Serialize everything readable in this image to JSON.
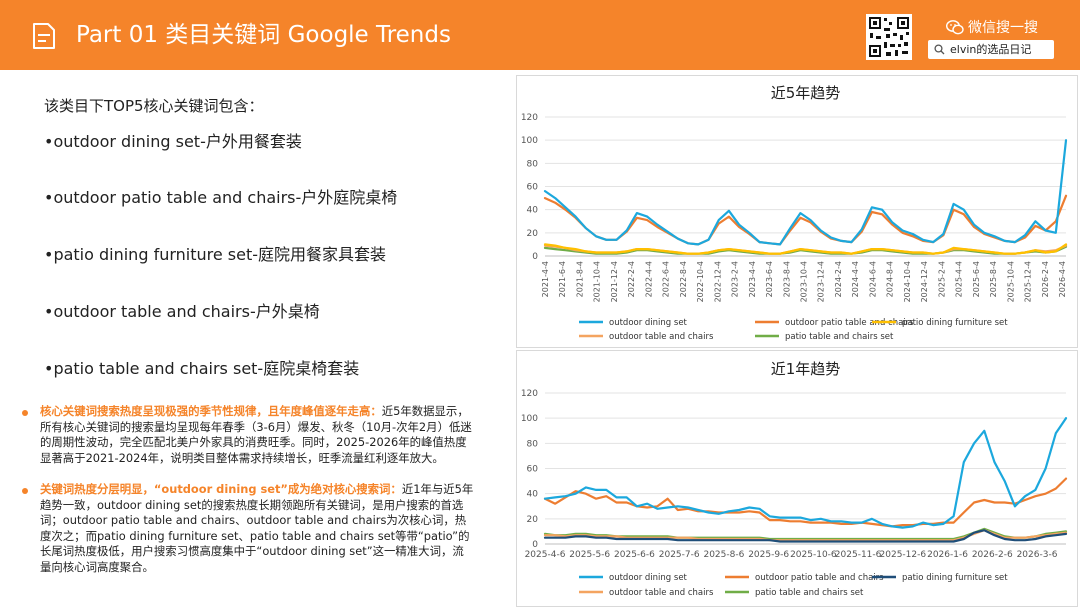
{
  "header": {
    "title": "Part 01 类目关键词 Google Trends",
    "wechat_label": "微信搜一搜",
    "search_value": "elvin的选品日记"
  },
  "keywords": {
    "intro": "该类目下TOP5核心关键词包含：",
    "items": [
      "•outdoor dining set-户外用餐套装",
      "•outdoor patio table and chairs-户外庭院桌椅",
      "•patio dining furniture set-庭院用餐家具套装",
      "•outdoor table and chairs-户外桌椅",
      "•patio table and chairs set-庭院桌椅套装"
    ]
  },
  "insights": [
    {
      "highlight": "核心关键词搜索热度呈现极强的季节性规律，且年度峰值逐年走高：",
      "text": "近5年数据显示，所有核心关键词的搜索量均呈现每年春季（3-6月）爆发、秋冬（10月-次年2月）低迷的周期性波动，完全匹配北美户外家具的消费旺季。同时，2025-2026年的峰值热度显著高于2021-2024年，说明类目整体需求持续增长，旺季流量红利逐年放大。"
    },
    {
      "highlight": "关键词热度分层明显，“outdoor dining set”成为绝对核心搜索词：",
      "text": "近1年与近5年趋势一致，outdoor dining set的搜索热度长期领跑所有关键词，是用户搜索的首选词；outdoor patio table and chairs、outdoor table and chairs为次核心词，热度次之；而patio dining furniture set、patio table and chairs set等带“patio”的长尾词热度极低，用户搜索习惯高度集中于“outdoor dining set”这一精准大词，流量向核心词高度聚合。"
    }
  ],
  "colors": {
    "accent": "#f5842a",
    "outdoor_dining_set": "#1ca8dd",
    "outdoor_patio_table_and_chairs": "#ed7d31",
    "patio_dining_furniture_set": "#ffc000",
    "outdoor_table_and_chairs": "#f4a460",
    "patio_table_and_chairs_set": "#70ad47",
    "patio_dining_furniture_set_1y": "#1f4e79"
  },
  "chart_data": [
    {
      "type": "line",
      "title": "近5年趋势",
      "xlabel": "",
      "ylabel": "",
      "ylim": [
        0,
        120
      ],
      "yticks": [
        0,
        20,
        40,
        60,
        80,
        100,
        120
      ],
      "grid": true,
      "legend_position": "bottom",
      "x_tick_labels": [
        "2021-4-4",
        "2021-6-4",
        "2021-8-4",
        "2021-10-4",
        "2021-12-4",
        "2022-2-4",
        "2022-4-4",
        "2022-6-4",
        "2022-8-4",
        "2022-10-4",
        "2022-12-4",
        "2023-2-4",
        "2023-4-4",
        "2023-6-4",
        "2023-8-4",
        "2023-10-4",
        "2023-12-4",
        "2024-2-4",
        "2024-4-4",
        "2024-6-4",
        "2024-8-4",
        "2024-10-4",
        "2024-12-4",
        "2025-2-4",
        "2025-4-4",
        "2025-6-4",
        "2025-8-4",
        "2025-10-4",
        "2025-12-4",
        "2026-2-4",
        "2026-4-4"
      ],
      "series": [
        {
          "name": "outdoor dining set",
          "color": "#1ca8dd",
          "values": [
            56,
            50,
            42,
            34,
            24,
            17,
            14,
            14,
            22,
            37,
            34,
            27,
            21,
            15,
            11,
            10,
            14,
            31,
            39,
            27,
            20,
            12,
            11,
            10,
            24,
            37,
            31,
            22,
            16,
            13,
            12,
            23,
            42,
            40,
            29,
            22,
            19,
            14,
            12,
            19,
            45,
            40,
            27,
            20,
            17,
            13,
            12,
            18,
            30,
            22,
            20,
            100
          ]
        },
        {
          "name": "outdoor patio table and chairs",
          "color": "#ed7d31",
          "values": [
            50,
            46,
            40,
            33,
            24,
            17,
            14,
            14,
            21,
            33,
            31,
            25,
            20,
            15,
            11,
            10,
            14,
            28,
            34,
            25,
            19,
            12,
            11,
            10,
            22,
            33,
            29,
            21,
            15,
            13,
            12,
            21,
            38,
            36,
            27,
            20,
            17,
            13,
            12,
            18,
            40,
            36,
            25,
            19,
            16,
            13,
            12,
            16,
            26,
            22,
            30,
            52
          ]
        },
        {
          "name": "patio dining furniture set",
          "color": "#ffc000",
          "values": [
            10,
            9,
            7,
            6,
            4,
            3,
            3,
            3,
            4,
            6,
            6,
            5,
            4,
            3,
            2,
            2,
            3,
            5,
            6,
            5,
            4,
            3,
            2,
            2,
            4,
            6,
            5,
            4,
            3,
            3,
            2,
            4,
            6,
            6,
            5,
            4,
            3,
            3,
            2,
            3,
            7,
            6,
            5,
            4,
            3,
            2,
            2,
            3,
            5,
            3,
            4,
            10
          ]
        },
        {
          "name": "outdoor table and chairs",
          "color": "#f4a460",
          "values": [
            9,
            8,
            7,
            5,
            4,
            3,
            3,
            3,
            4,
            6,
            6,
            5,
            4,
            3,
            2,
            2,
            3,
            5,
            6,
            5,
            4,
            3,
            2,
            2,
            4,
            6,
            5,
            4,
            3,
            3,
            2,
            4,
            6,
            6,
            5,
            4,
            3,
            3,
            2,
            3,
            6,
            6,
            5,
            4,
            3,
            2,
            2,
            3,
            5,
            4,
            5,
            9
          ]
        },
        {
          "name": "patio table and chairs set",
          "color": "#70ad47",
          "values": [
            7,
            6,
            5,
            4,
            3,
            2,
            2,
            2,
            3,
            5,
            5,
            4,
            3,
            2,
            2,
            2,
            2,
            4,
            5,
            4,
            3,
            2,
            2,
            2,
            3,
            5,
            4,
            3,
            2,
            2,
            2,
            3,
            5,
            5,
            4,
            3,
            2,
            2,
            2,
            3,
            5,
            5,
            4,
            3,
            2,
            2,
            2,
            3,
            4,
            3,
            4,
            8
          ]
        }
      ]
    },
    {
      "type": "line",
      "title": "近1年趋势",
      "xlabel": "",
      "ylabel": "",
      "ylim": [
        0,
        120
      ],
      "yticks": [
        0,
        20,
        40,
        60,
        80,
        100,
        120
      ],
      "grid": true,
      "legend_position": "bottom",
      "x_tick_labels": [
        "2025-4-6",
        "2025-5-6",
        "2025-6-6",
        "2025-7-6",
        "2025-8-6",
        "2025-9-6",
        "2025-10-6",
        "2025-11-6",
        "2025-12-6",
        "2026-1-6",
        "2026-2-6",
        "2026-3-6"
      ],
      "series": [
        {
          "name": "outdoor dining set",
          "color": "#1ca8dd",
          "values": [
            36,
            37,
            38,
            40,
            45,
            43,
            43,
            37,
            37,
            30,
            32,
            28,
            29,
            30,
            29,
            27,
            25,
            24,
            26,
            27,
            29,
            28,
            22,
            21,
            21,
            21,
            19,
            20,
            18,
            18,
            17,
            17,
            20,
            16,
            14,
            13,
            14,
            17,
            15,
            16,
            22,
            65,
            80,
            90,
            65,
            50,
            30,
            38,
            43,
            60,
            88,
            100
          ]
        },
        {
          "name": "outdoor patio table and chairs",
          "color": "#ed7d31",
          "values": [
            36,
            32,
            37,
            42,
            40,
            36,
            38,
            33,
            33,
            30,
            29,
            30,
            36,
            27,
            28,
            26,
            26,
            25,
            25,
            25,
            26,
            25,
            19,
            19,
            18,
            18,
            17,
            17,
            17,
            16,
            16,
            17,
            16,
            15,
            14,
            15,
            15,
            16,
            16,
            17,
            17,
            25,
            33,
            35,
            33,
            33,
            32,
            35,
            38,
            40,
            44,
            52
          ]
        },
        {
          "name": "patio dining furniture set",
          "color": "#1f4e79",
          "values": [
            5,
            5,
            5,
            6,
            6,
            5,
            5,
            4,
            4,
            4,
            4,
            4,
            4,
            3,
            3,
            3,
            3,
            3,
            3,
            3,
            3,
            3,
            3,
            2,
            2,
            2,
            2,
            2,
            2,
            2,
            2,
            2,
            2,
            2,
            2,
            2,
            2,
            2,
            2,
            2,
            2,
            4,
            9,
            11,
            7,
            4,
            3,
            3,
            4,
            6,
            7,
            8
          ]
        },
        {
          "name": "outdoor table and chairs",
          "color": "#f4a460",
          "values": [
            7,
            7,
            6,
            7,
            7,
            6,
            6,
            6,
            5,
            5,
            5,
            5,
            5,
            5,
            5,
            4,
            4,
            4,
            4,
            4,
            4,
            4,
            3,
            3,
            3,
            3,
            3,
            3,
            3,
            3,
            3,
            3,
            3,
            3,
            3,
            3,
            3,
            3,
            3,
            3,
            3,
            5,
            8,
            11,
            8,
            5,
            5,
            5,
            6,
            7,
            8,
            9
          ]
        },
        {
          "name": "patio table and chairs set",
          "color": "#70ad47",
          "values": [
            8,
            7,
            7,
            8,
            8,
            7,
            7,
            6,
            6,
            6,
            6,
            6,
            6,
            5,
            5,
            5,
            5,
            5,
            5,
            5,
            5,
            5,
            4,
            4,
            4,
            4,
            4,
            4,
            4,
            4,
            4,
            4,
            4,
            4,
            4,
            4,
            4,
            4,
            4,
            4,
            4,
            6,
            9,
            12,
            9,
            6,
            5,
            5,
            6,
            8,
            9,
            10
          ]
        }
      ]
    }
  ]
}
